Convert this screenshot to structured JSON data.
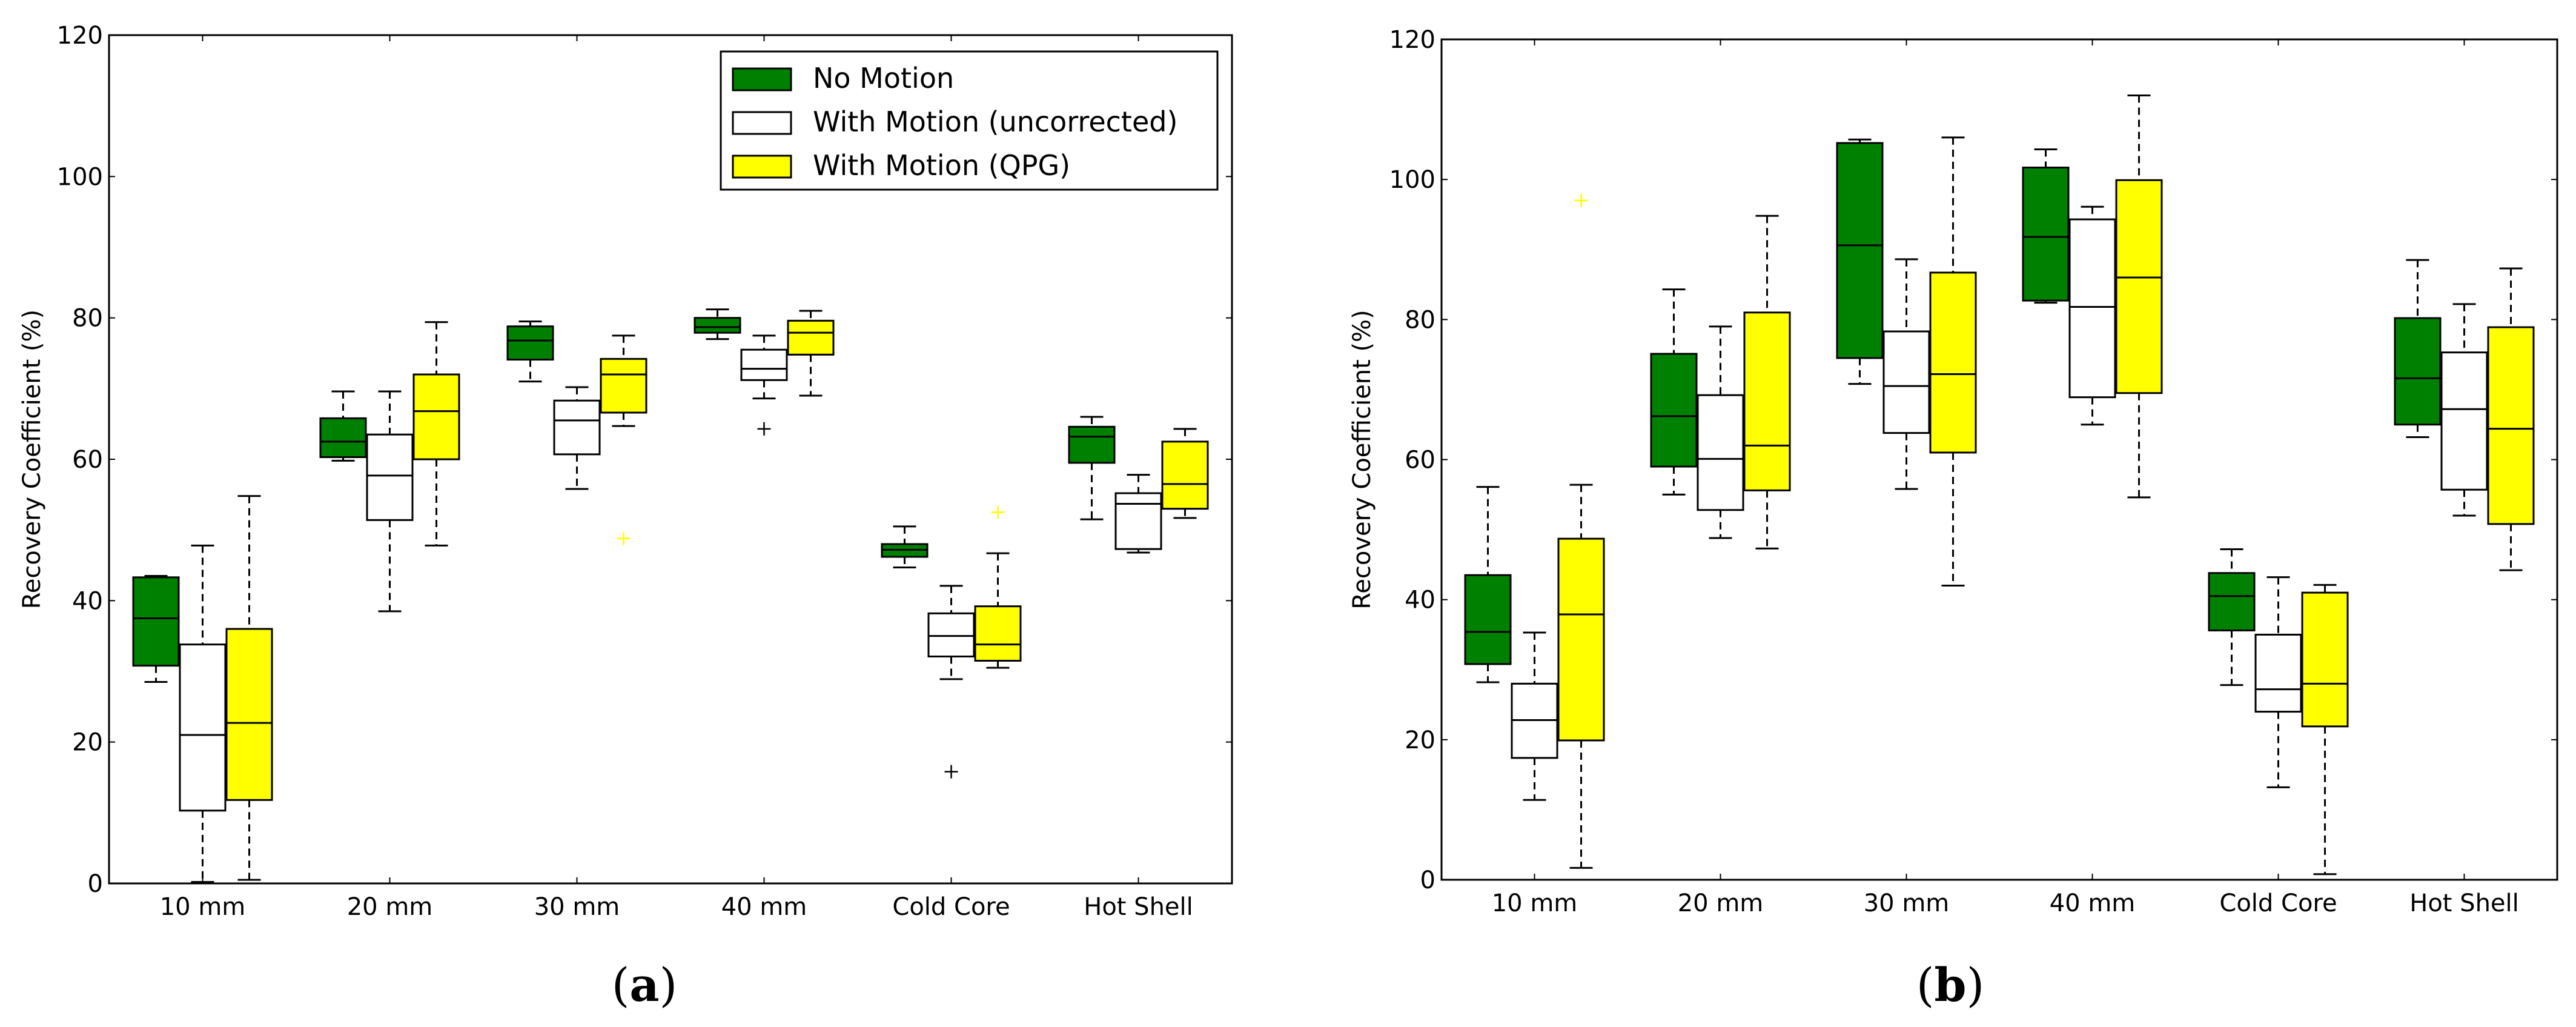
{
  "chart_data": [
    {
      "panel": "(a)",
      "panel_letter": "a",
      "type": "box",
      "ylabel": "Recovery Coefficient (%)",
      "ylim": [
        0,
        120
      ],
      "yticks": [
        "0",
        "20",
        "40",
        "60",
        "80",
        "100",
        "120"
      ],
      "categories": [
        "10 mm",
        "20 mm",
        "30 mm",
        "40 mm",
        "Cold Core",
        "Hot Shell"
      ],
      "legend": {
        "placement": "top-right"
      },
      "series": [
        {
          "name": "No Motion",
          "color": "#008000",
          "boxes": [
            {
              "min": 28.5,
              "q1": 30.8,
              "median": 37.5,
              "q3": 43.3,
              "max": 43.5,
              "outliers": []
            },
            {
              "min": 59.8,
              "q1": 60.3,
              "median": 62.5,
              "q3": 65.8,
              "max": 69.6,
              "outliers": []
            },
            {
              "min": 71.0,
              "q1": 74.1,
              "median": 76.8,
              "q3": 78.8,
              "max": 79.5,
              "outliers": []
            },
            {
              "min": 77.0,
              "q1": 77.9,
              "median": 78.7,
              "q3": 80.0,
              "max": 81.2,
              "outliers": []
            },
            {
              "min": 44.7,
              "q1": 46.2,
              "median": 47.2,
              "q3": 48.0,
              "max": 50.5,
              "outliers": []
            },
            {
              "min": 51.5,
              "q1": 59.5,
              "median": 63.2,
              "q3": 64.6,
              "max": 66.0,
              "outliers": []
            }
          ]
        },
        {
          "name": "With Motion (uncorrected)",
          "color": "#ffffff",
          "boxes": [
            {
              "min": 0.2,
              "q1": 10.3,
              "median": 21.0,
              "q3": 33.8,
              "max": 47.8,
              "outliers": []
            },
            {
              "min": 38.5,
              "q1": 51.4,
              "median": 57.7,
              "q3": 63.5,
              "max": 69.6,
              "outliers": []
            },
            {
              "min": 55.8,
              "q1": 60.7,
              "median": 65.5,
              "q3": 68.3,
              "max": 70.2,
              "outliers": []
            },
            {
              "min": 68.6,
              "q1": 71.2,
              "median": 72.8,
              "q3": 75.5,
              "max": 77.5,
              "outliers": [
                64.3
              ]
            },
            {
              "min": 28.9,
              "q1": 32.1,
              "median": 35.0,
              "q3": 38.2,
              "max": 42.1,
              "outliers": [
                15.8
              ]
            },
            {
              "min": 46.8,
              "q1": 47.3,
              "median": 53.7,
              "q3": 55.2,
              "max": 57.8,
              "outliers": []
            }
          ]
        },
        {
          "name": "With Motion (QPG)",
          "color": "#ffff00",
          "boxes": [
            {
              "min": 0.5,
              "q1": 11.8,
              "median": 22.7,
              "q3": 36.0,
              "max": 54.8,
              "outliers": []
            },
            {
              "min": 47.8,
              "q1": 60.0,
              "median": 66.8,
              "q3": 72.0,
              "max": 79.4,
              "outliers": []
            },
            {
              "min": 64.7,
              "q1": 66.6,
              "median": 72.0,
              "q3": 74.2,
              "max": 77.5,
              "outliers": [
                48.8
              ]
            },
            {
              "min": 69.0,
              "q1": 74.8,
              "median": 77.9,
              "q3": 79.6,
              "max": 81.0,
              "outliers": []
            },
            {
              "min": 30.5,
              "q1": 31.5,
              "median": 33.8,
              "q3": 39.2,
              "max": 46.7,
              "outliers": [
                52.5
              ]
            },
            {
              "min": 51.7,
              "q1": 53.0,
              "median": 56.5,
              "q3": 62.5,
              "max": 64.3,
              "outliers": []
            }
          ]
        }
      ]
    },
    {
      "panel": "(b)",
      "panel_letter": "b",
      "type": "box",
      "ylabel": "Recovery Coefficient (%)",
      "ylim": [
        0,
        120
      ],
      "yticks": [
        "0",
        "20",
        "40",
        "60",
        "80",
        "100",
        "120"
      ],
      "categories": [
        "10 mm",
        "20 mm",
        "30 mm",
        "40 mm",
        "Cold Core",
        "Hot Shell"
      ],
      "series": [
        {
          "name": "No Motion",
          "color": "#008000",
          "boxes": [
            {
              "min": 28.2,
              "q1": 30.8,
              "median": 35.4,
              "q3": 43.5,
              "max": 56.1,
              "outliers": []
            },
            {
              "min": 55.0,
              "q1": 59.0,
              "median": 66.2,
              "q3": 75.1,
              "max": 84.3,
              "outliers": []
            },
            {
              "min": 70.8,
              "q1": 74.5,
              "median": 90.6,
              "q3": 105.2,
              "max": 105.7,
              "outliers": []
            },
            {
              "min": 82.4,
              "q1": 82.7,
              "median": 91.8,
              "q3": 101.7,
              "max": 104.3,
              "outliers": []
            },
            {
              "min": 27.8,
              "q1": 35.6,
              "median": 40.5,
              "q3": 43.8,
              "max": 47.2,
              "outliers": []
            },
            {
              "min": 63.2,
              "q1": 65.0,
              "median": 71.6,
              "q3": 80.2,
              "max": 88.5,
              "outliers": []
            }
          ]
        },
        {
          "name": "With Motion (uncorrected)",
          "color": "#ffffff",
          "boxes": [
            {
              "min": 11.4,
              "q1": 17.4,
              "median": 22.8,
              "q3": 28.0,
              "max": 35.3,
              "outliers": []
            },
            {
              "min": 48.8,
              "q1": 52.8,
              "median": 60.1,
              "q3": 69.2,
              "max": 79.0,
              "outliers": []
            },
            {
              "min": 55.8,
              "q1": 63.8,
              "median": 70.5,
              "q3": 78.3,
              "max": 88.6,
              "outliers": []
            },
            {
              "min": 65.0,
              "q1": 68.9,
              "median": 81.8,
              "q3": 94.3,
              "max": 96.1,
              "outliers": []
            },
            {
              "min": 13.2,
              "q1": 24.0,
              "median": 27.2,
              "q3": 35.0,
              "max": 43.2,
              "outliers": []
            },
            {
              "min": 52.0,
              "q1": 55.7,
              "median": 67.2,
              "q3": 75.3,
              "max": 82.2,
              "outliers": []
            }
          ]
        },
        {
          "name": "With Motion (QPG)",
          "color": "#ffff00",
          "boxes": [
            {
              "min": 1.7,
              "q1": 19.9,
              "median": 37.9,
              "q3": 48.7,
              "max": 56.4,
              "outliers": [
                97.0
              ]
            },
            {
              "min": 47.3,
              "q1": 55.6,
              "median": 62.0,
              "q3": 81.0,
              "max": 94.8,
              "outliers": []
            },
            {
              "min": 42.0,
              "q1": 61.0,
              "median": 72.2,
              "q3": 86.7,
              "max": 106.0,
              "outliers": []
            },
            {
              "min": 54.6,
              "q1": 69.5,
              "median": 86.0,
              "q3": 99.9,
              "max": 112.0,
              "outliers": []
            },
            {
              "min": 0.8,
              "q1": 21.9,
              "median": 28.0,
              "q3": 41.0,
              "max": 42.1,
              "outliers": []
            },
            {
              "min": 44.2,
              "q1": 50.8,
              "median": 64.4,
              "q3": 78.9,
              "max": 87.3,
              "outliers": []
            }
          ]
        }
      ]
    }
  ]
}
